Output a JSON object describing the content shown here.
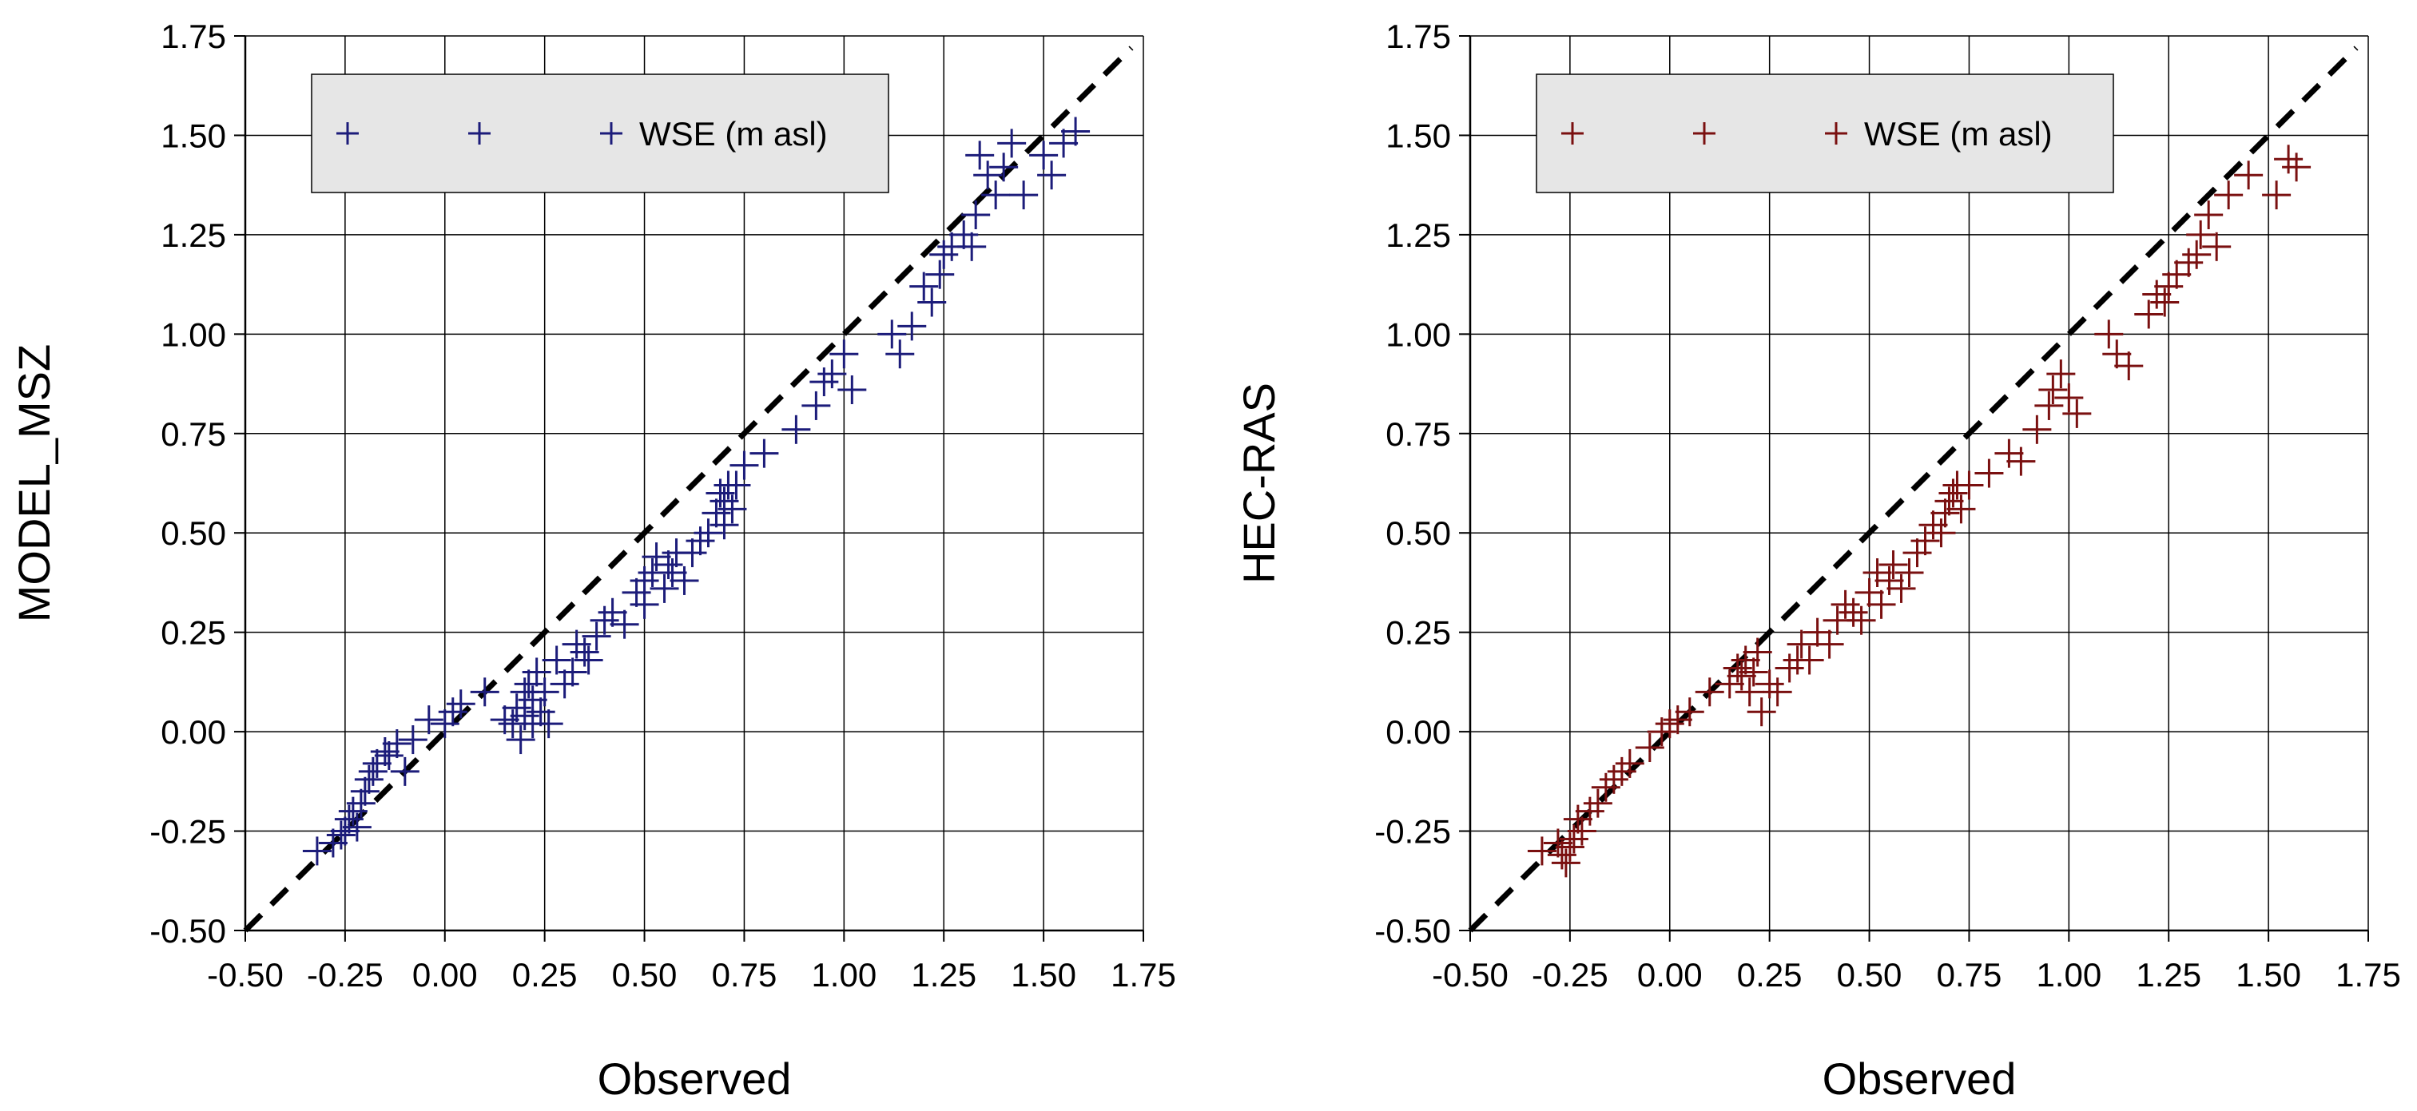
{
  "chart_data": [
    {
      "type": "scatter",
      "xlabel": "Observed",
      "ylabel": "MODEL_MSZ",
      "xlim": [
        -0.5,
        1.75
      ],
      "ylim": [
        -0.5,
        1.75
      ],
      "xticks": [
        "-0.50",
        "-0.25",
        "0.00",
        "0.25",
        "0.50",
        "0.75",
        "1.00",
        "1.25",
        "1.50",
        "1.75"
      ],
      "yticks": [
        "-0.50",
        "-0.25",
        "0.00",
        "0.25",
        "0.50",
        "0.75",
        "1.00",
        "1.25",
        "1.50",
        "1.75"
      ],
      "grid": true,
      "legend": {
        "placement": "top-left",
        "label": "WSE (m asl)"
      },
      "marker_color": "#1c1c7a",
      "reference_line": {
        "from": [
          -0.5,
          -0.5
        ],
        "to": [
          1.72,
          1.72
        ],
        "style": "dashed",
        "color": "#000000"
      },
      "series": [
        {
          "marker": "plus",
          "x": [
            -0.32,
            -0.28,
            -0.26,
            -0.25,
            -0.24,
            -0.23,
            -0.22,
            -0.21,
            -0.2,
            -0.19,
            -0.18,
            -0.17,
            -0.15,
            -0.14,
            -0.12,
            -0.1,
            -0.08,
            -0.04,
            0.0,
            0.02,
            0.04,
            0.1,
            0.15,
            0.17,
            0.18,
            0.19,
            0.2,
            0.2,
            0.21,
            0.22,
            0.22,
            0.23,
            0.24,
            0.25,
            0.26,
            0.28,
            0.3,
            0.32,
            0.33,
            0.35,
            0.36,
            0.38,
            0.4,
            0.42,
            0.45,
            0.48,
            0.5,
            0.5,
            0.52,
            0.53,
            0.55,
            0.56,
            0.57,
            0.58,
            0.6,
            0.62,
            0.64,
            0.66,
            0.68,
            0.69,
            0.7,
            0.7,
            0.71,
            0.72,
            0.73,
            0.75,
            0.8,
            0.88,
            0.93,
            0.95,
            0.97,
            1.0,
            1.02,
            1.12,
            1.14,
            1.17,
            1.2,
            1.22,
            1.24,
            1.25,
            1.27,
            1.3,
            1.32,
            1.33,
            1.34,
            1.36,
            1.38,
            1.4,
            1.42,
            1.45,
            1.5,
            1.52,
            1.55,
            1.58
          ],
          "y": [
            -0.3,
            -0.28,
            -0.26,
            -0.25,
            -0.22,
            -0.2,
            -0.24,
            -0.18,
            -0.15,
            -0.12,
            -0.1,
            -0.08,
            -0.05,
            -0.06,
            -0.03,
            -0.1,
            -0.02,
            0.03,
            0.02,
            0.05,
            0.07,
            0.1,
            0.03,
            0.02,
            0.06,
            -0.02,
            0.04,
            0.1,
            0.12,
            0.02,
            0.08,
            0.15,
            0.05,
            0.1,
            0.02,
            0.18,
            0.12,
            0.15,
            0.22,
            0.2,
            0.18,
            0.24,
            0.28,
            0.3,
            0.27,
            0.35,
            0.32,
            0.38,
            0.4,
            0.44,
            0.36,
            0.42,
            0.4,
            0.45,
            0.38,
            0.45,
            0.48,
            0.5,
            0.55,
            0.6,
            0.52,
            0.58,
            0.62,
            0.56,
            0.62,
            0.67,
            0.7,
            0.76,
            0.82,
            0.88,
            0.9,
            0.95,
            0.86,
            1.0,
            0.95,
            1.02,
            1.12,
            1.08,
            1.15,
            1.2,
            1.22,
            1.25,
            1.22,
            1.3,
            1.45,
            1.4,
            1.35,
            1.42,
            1.48,
            1.35,
            1.45,
            1.4,
            1.48,
            1.51
          ]
        }
      ]
    },
    {
      "type": "scatter",
      "xlabel": "Observed",
      "ylabel": "HEC-RAS",
      "xlim": [
        -0.5,
        1.75
      ],
      "ylim": [
        -0.5,
        1.75
      ],
      "xticks": [
        "-0.50",
        "-0.25",
        "0.00",
        "0.25",
        "0.50",
        "0.75",
        "1.00",
        "1.25",
        "1.50",
        "1.75"
      ],
      "yticks": [
        "-0.50",
        "-0.25",
        "0.00",
        "0.25",
        "0.50",
        "0.75",
        "1.00",
        "1.25",
        "1.50",
        "1.75"
      ],
      "grid": true,
      "legend": {
        "placement": "top-left",
        "label": "WSE (m asl)"
      },
      "marker_color": "#7a1010",
      "reference_line": {
        "from": [
          -0.5,
          -0.5
        ],
        "to": [
          1.72,
          1.72
        ],
        "style": "dashed",
        "color": "#000000"
      },
      "series": [
        {
          "marker": "plus",
          "x": [
            -0.32,
            -0.28,
            -0.27,
            -0.26,
            -0.25,
            -0.24,
            -0.23,
            -0.22,
            -0.2,
            -0.18,
            -0.16,
            -0.14,
            -0.12,
            -0.1,
            -0.05,
            -0.02,
            0.0,
            0.02,
            0.05,
            0.1,
            0.15,
            0.17,
            0.18,
            0.19,
            0.2,
            0.21,
            0.22,
            0.23,
            0.25,
            0.27,
            0.3,
            0.32,
            0.33,
            0.35,
            0.37,
            0.4,
            0.42,
            0.44,
            0.46,
            0.48,
            0.5,
            0.52,
            0.53,
            0.55,
            0.56,
            0.58,
            0.6,
            0.62,
            0.64,
            0.66,
            0.68,
            0.69,
            0.7,
            0.71,
            0.72,
            0.73,
            0.75,
            0.8,
            0.85,
            0.88,
            0.92,
            0.95,
            0.96,
            0.98,
            1.0,
            1.02,
            1.1,
            1.12,
            1.15,
            1.2,
            1.22,
            1.24,
            1.25,
            1.27,
            1.3,
            1.32,
            1.33,
            1.35,
            1.37,
            1.4,
            1.45,
            1.52,
            1.55,
            1.57
          ],
          "y": [
            -0.3,
            -0.28,
            -0.31,
            -0.33,
            -0.29,
            -0.27,
            -0.22,
            -0.25,
            -0.2,
            -0.18,
            -0.14,
            -0.12,
            -0.1,
            -0.08,
            -0.04,
            0.0,
            0.02,
            0.03,
            0.05,
            0.1,
            0.12,
            0.16,
            0.14,
            0.18,
            0.1,
            0.15,
            0.2,
            0.05,
            0.12,
            0.1,
            0.16,
            0.18,
            0.22,
            0.18,
            0.25,
            0.22,
            0.28,
            0.32,
            0.3,
            0.28,
            0.35,
            0.4,
            0.32,
            0.38,
            0.42,
            0.36,
            0.4,
            0.45,
            0.48,
            0.52,
            0.5,
            0.55,
            0.58,
            0.6,
            0.62,
            0.56,
            0.62,
            0.65,
            0.7,
            0.68,
            0.76,
            0.82,
            0.86,
            0.9,
            0.84,
            0.8,
            1.0,
            0.95,
            0.92,
            1.05,
            1.1,
            1.08,
            1.12,
            1.15,
            1.18,
            1.2,
            1.25,
            1.3,
            1.22,
            1.35,
            1.4,
            1.35,
            1.44,
            1.42
          ]
        }
      ]
    }
  ]
}
